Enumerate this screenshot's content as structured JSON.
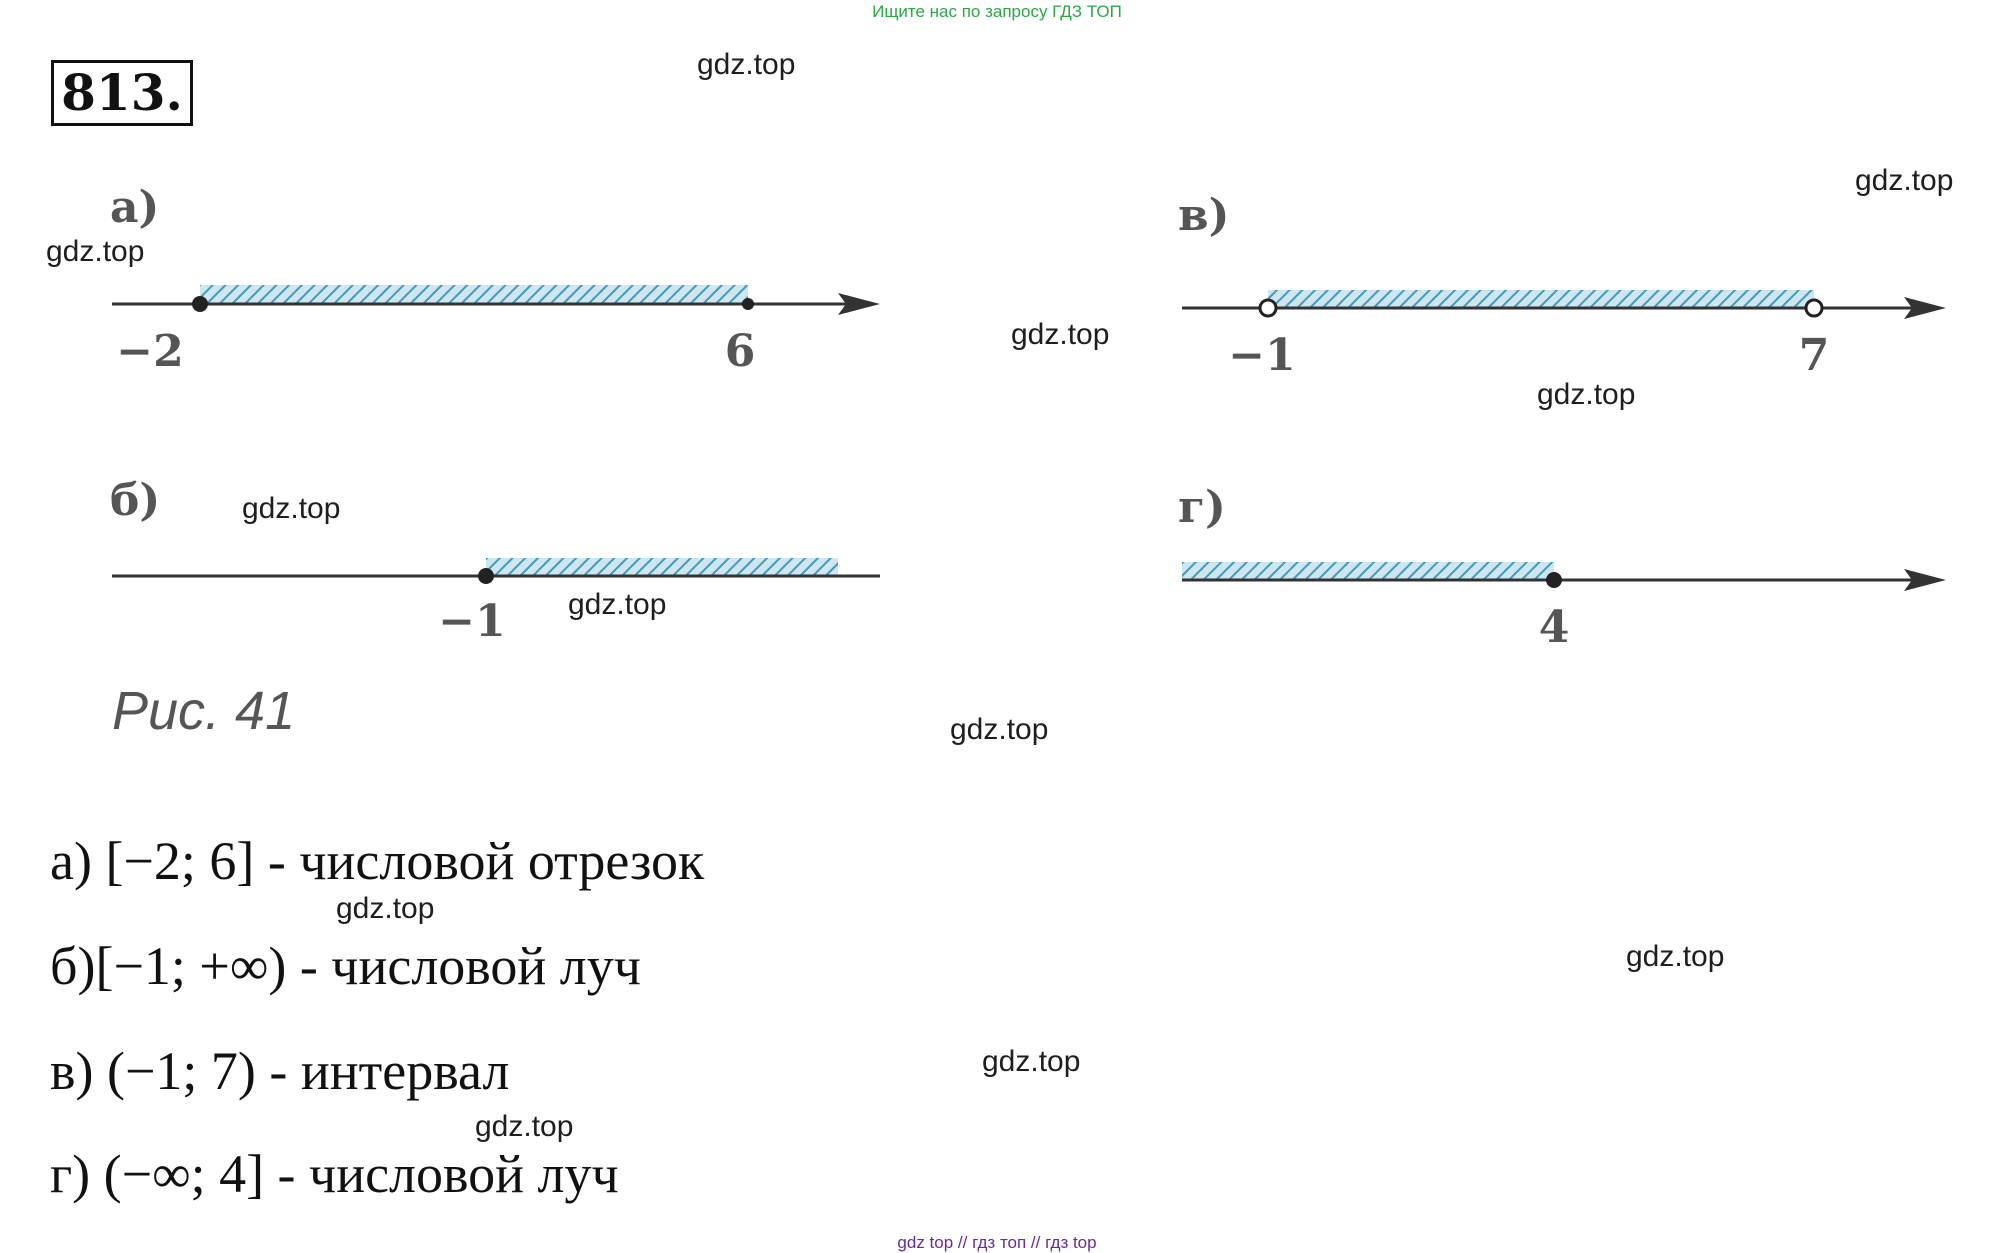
{
  "header": {
    "search_hint": "Ищите нас по запросу ГДЗ ТОП"
  },
  "problem": {
    "number": "813."
  },
  "watermark": "gdz.top",
  "figure": {
    "caption": "Рис. 41",
    "panels": [
      {
        "label": "а)",
        "left": "−2",
        "right": "6"
      },
      {
        "label": "б)",
        "left": "−1"
      },
      {
        "label": "в)",
        "left": "−1",
        "right": "7"
      },
      {
        "label": "г)",
        "right": "4"
      }
    ]
  },
  "answers": [
    "а) [−2; 6] - числовой отрезок",
    "б)[−1; +∞) - числовой луч",
    "в) (−1; 7) - интервал",
    "г) (−∞; 4] - числовой луч"
  ],
  "footer": {
    "links": "gdz top  //  гдз топ  //  гдз top"
  }
}
